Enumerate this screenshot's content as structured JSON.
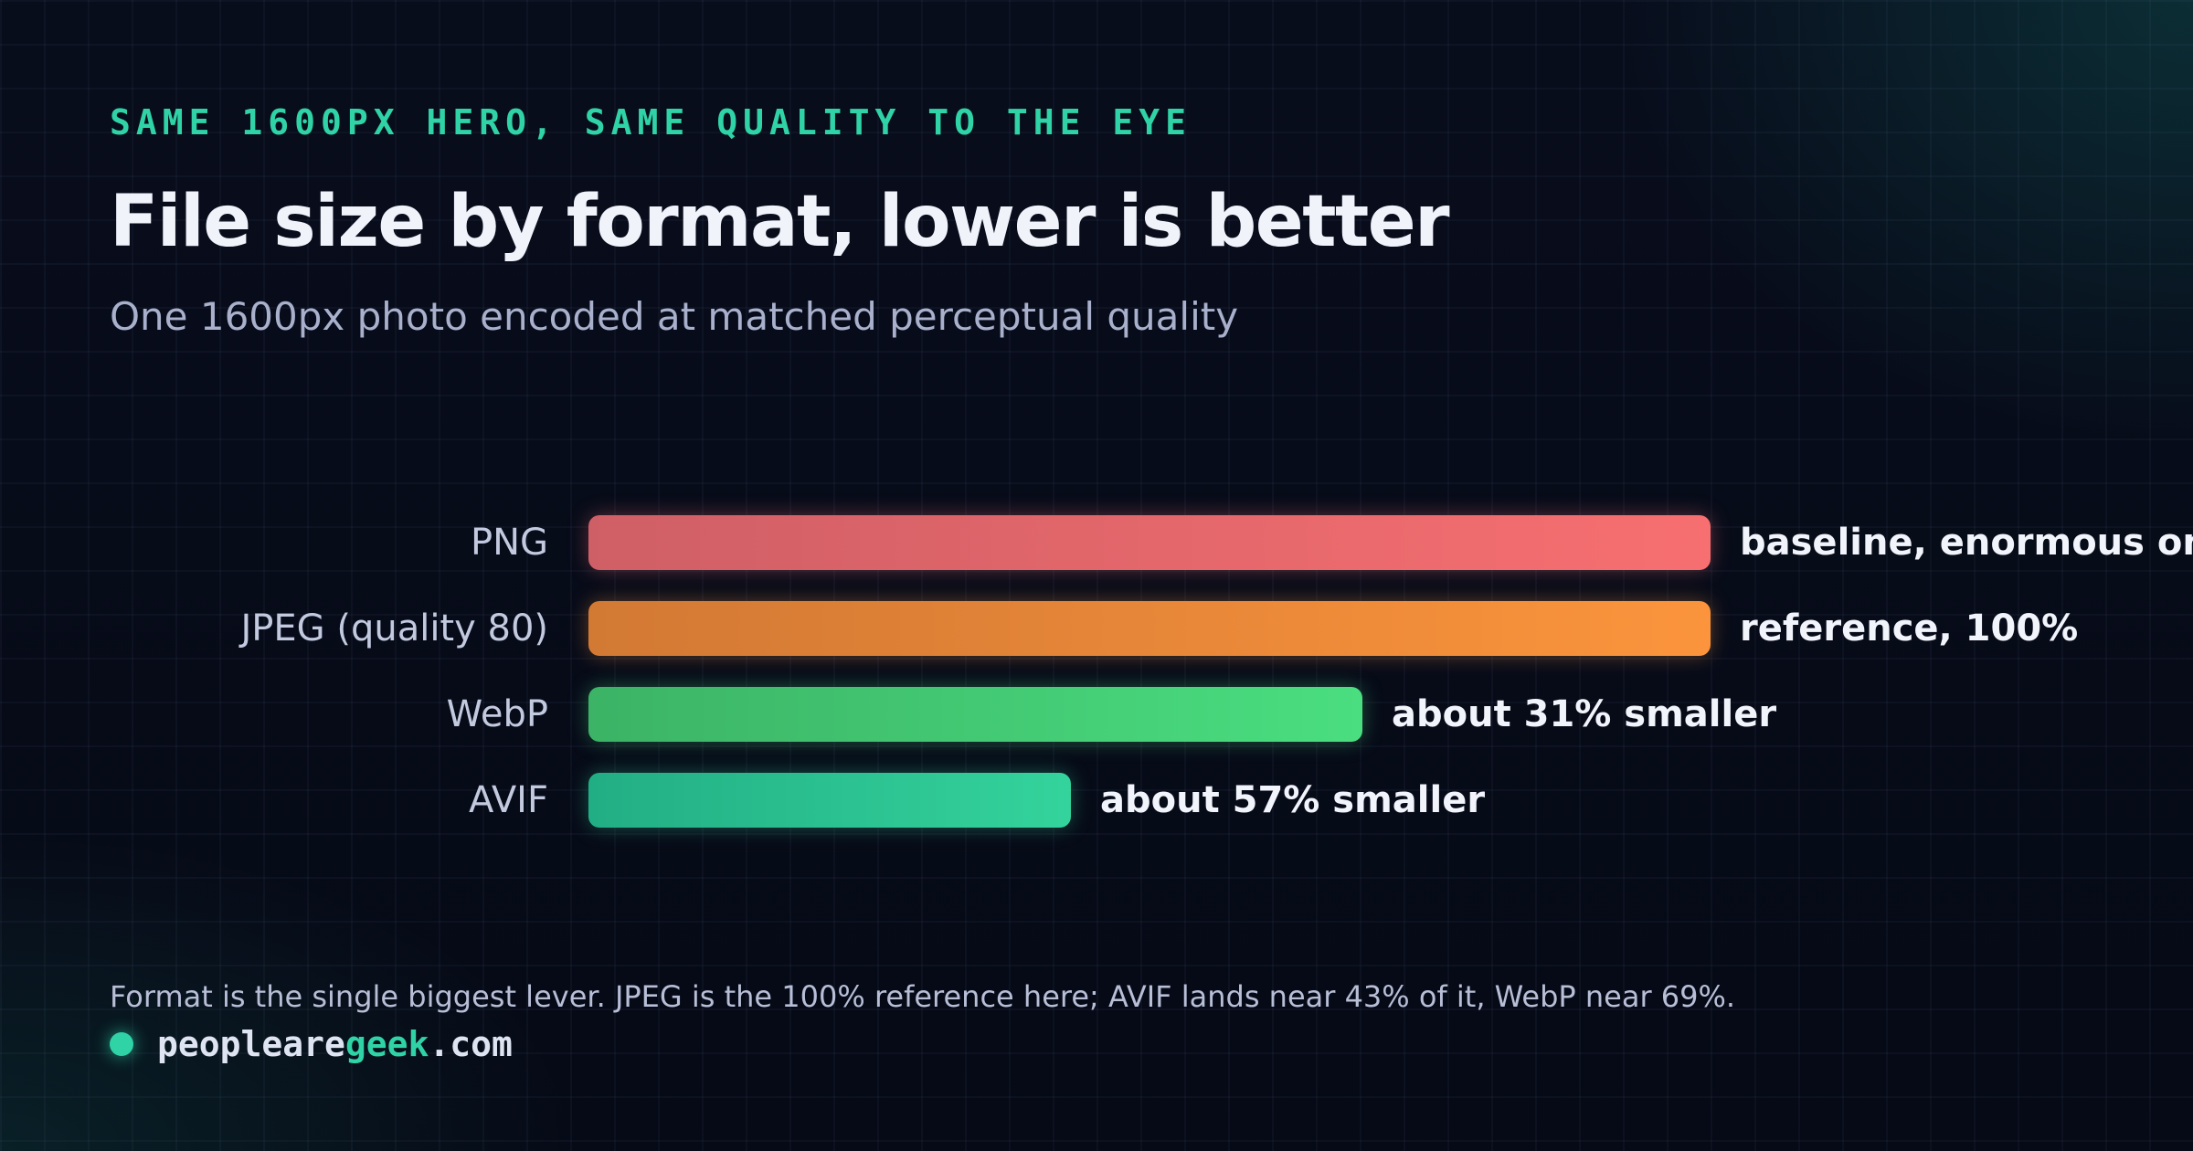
{
  "eyebrow": "SAME 1600PX HERO, SAME QUALITY TO THE EYE",
  "footnote": "Format is the single biggest lever. JPEG is the 100% reference here; AVIF lands near 43% of it, WebP near 69%.",
  "brand": {
    "prefix": "peopleare",
    "accent": "geek",
    "suffix": ".com",
    "accent_color": "#2fd3a6"
  },
  "chart_data": {
    "type": "bar",
    "orientation": "horizontal",
    "title": "File size by format, lower is better",
    "subtitle": "One 1600px photo encoded at matched perceptual quality",
    "categories": [
      "PNG",
      "JPEG (quality 80)",
      "WebP",
      "AVIF"
    ],
    "values": [
      100,
      100,
      69,
      43
    ],
    "value_labels": [
      "baseline, enormous on p",
      "reference, 100%",
      "about 31% smaller",
      "about 57% smaller"
    ],
    "xlim": [
      0,
      100
    ],
    "grid": true,
    "colors": [
      [
        "#cf5f66",
        "#f76f70"
      ],
      [
        "#d27934",
        "#fb943c"
      ],
      [
        "#3cb366",
        "#4ade80"
      ],
      [
        "#22ae84",
        "#34d39c"
      ]
    ],
    "glow_colors": [
      "rgba(247,111,112,0.35)",
      "rgba(251,148,60,0.35)",
      "rgba(74,222,128,0.35)",
      "rgba(52,211,156,0.35)"
    ]
  }
}
